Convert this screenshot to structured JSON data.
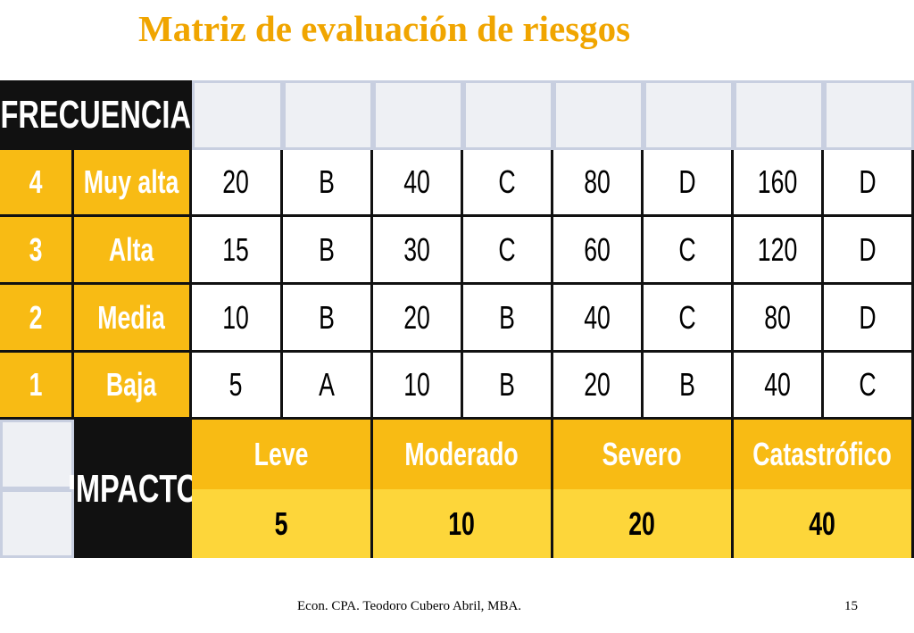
{
  "slide": {
    "title": "Matriz de evaluación de riesgos",
    "footer_author": "Econ. CPA. Teodoro Cubero Abril, MBA.",
    "page_number": "15"
  },
  "matrix": {
    "frequency_header": "FRECUENCIA",
    "impact_header": "IMPACTO",
    "rows": [
      {
        "level": "4",
        "label": "Muy alta",
        "cells": [
          "20",
          "B",
          "40",
          "C",
          "80",
          "D",
          "160",
          "D"
        ]
      },
      {
        "level": "3",
        "label": "Alta",
        "cells": [
          "15",
          "B",
          "30",
          "C",
          "60",
          "C",
          "120",
          "D"
        ]
      },
      {
        "level": "2",
        "label": "Media",
        "cells": [
          "10",
          "B",
          "20",
          "B",
          "40",
          "C",
          "80",
          "D"
        ]
      },
      {
        "level": "1",
        "label": "Baja",
        "cells": [
          "5",
          "A",
          "10",
          "B",
          "20",
          "B",
          "40",
          "C"
        ]
      }
    ],
    "impacts": [
      {
        "label": "Leve",
        "value": "5"
      },
      {
        "label": "Moderado",
        "value": "10"
      },
      {
        "label": "Severo",
        "value": "20"
      },
      {
        "label": "Catastrófico",
        "value": "40"
      }
    ]
  },
  "colors": {
    "title": "#f0a500",
    "gold": "#f8bb14",
    "light_gold": "#fdd63a",
    "black": "#111111",
    "blank_cell": "#eef0f4"
  }
}
